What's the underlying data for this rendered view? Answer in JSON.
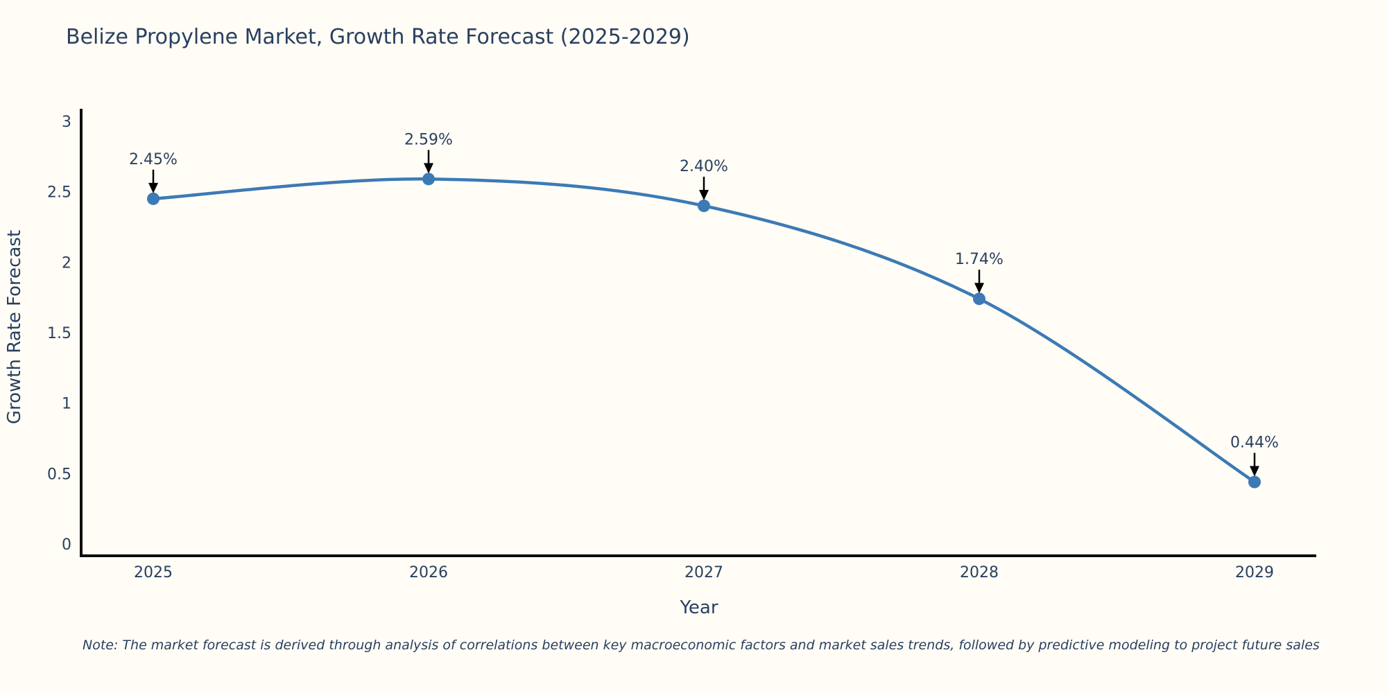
{
  "chart": {
    "title": "Belize Propylene Market, Growth Rate Forecast (2025-2029)",
    "note": "Note: The market forecast is derived through analysis of correlations between key macroeconomic factors and market sales trends, followed by predictive modeling to project future sales",
    "xlabel": "Year",
    "ylabel": "Growth Rate Forecast"
  },
  "chart_data": {
    "type": "line",
    "line_shape": "spline",
    "title": "Belize Propylene Market, Growth Rate Forecast (2025-2029)",
    "xlabel": "Year",
    "ylabel": "Growth Rate Forecast",
    "x": [
      2025,
      2026,
      2027,
      2028,
      2029
    ],
    "values": [
      2.45,
      2.59,
      2.4,
      1.74,
      0.44
    ],
    "point_labels": [
      "2.45%",
      "2.59%",
      "2.40%",
      "1.74%",
      "0.44%"
    ],
    "xticks": [
      "2025",
      "2026",
      "2027",
      "2028",
      "2029"
    ],
    "yticks": [
      0,
      0.5,
      1,
      1.5,
      2,
      2.5,
      3
    ],
    "ytick_labels": [
      "0",
      "0.5",
      "1",
      "1.5",
      "2",
      "2.5",
      "3"
    ],
    "ylim": [
      0,
      3.08
    ],
    "xlim": [
      2024.74,
      2029.22
    ],
    "grid": false,
    "legend": "none",
    "line_color": "#3c7ab6",
    "marker_color": "#3c7ab6",
    "annotation_color": "#2a3f5f",
    "arrow_color": "#000000",
    "axis_color": "#0d0d0d",
    "text_color": "#2a3f5f",
    "background": "#fffdf6"
  }
}
